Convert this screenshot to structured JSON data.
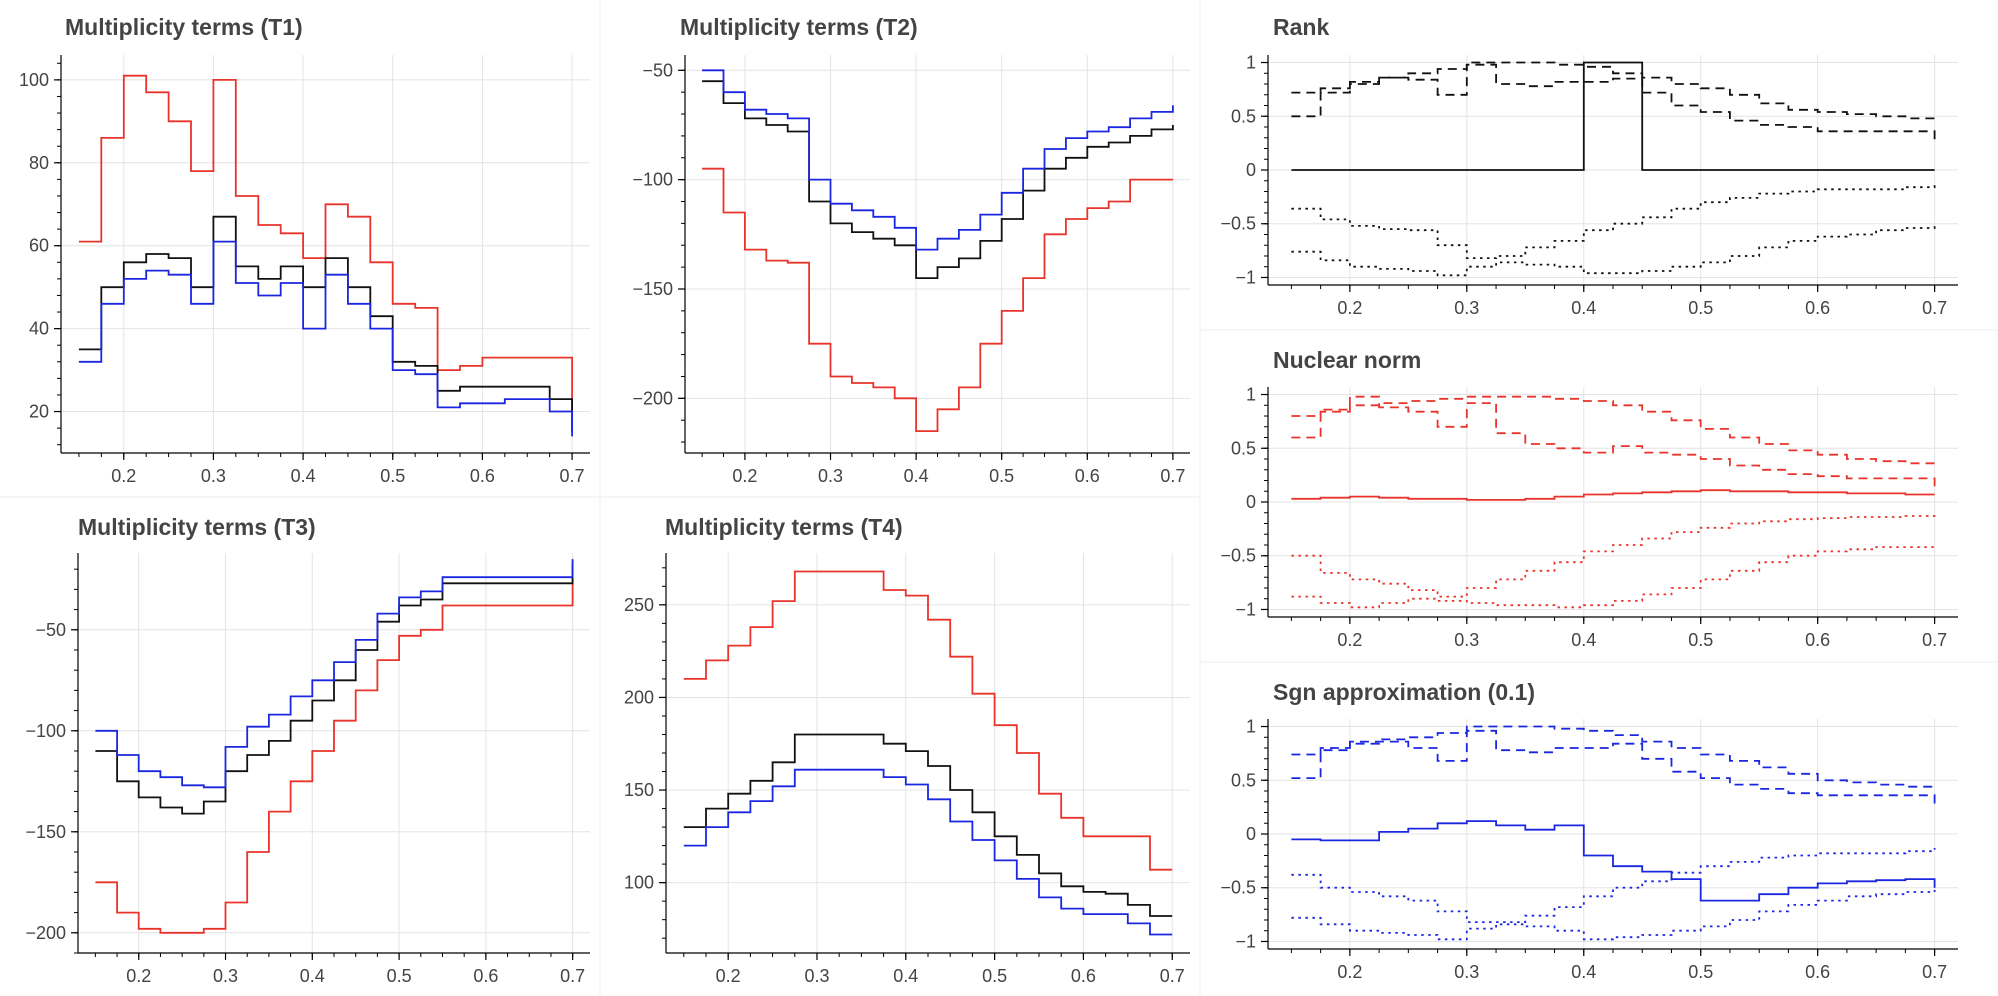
{
  "colors": {
    "red": "#e8342a",
    "black": "#111111",
    "blue": "#1a26e0"
  },
  "chart_data": [
    {
      "type": "line",
      "title": "Multiplicity terms (T1)",
      "xlim": [
        0.13,
        0.72
      ],
      "ylim": [
        10,
        106
      ],
      "xticks": [
        "0.2",
        "0.3",
        "0.4",
        "0.5",
        "0.6",
        "0.7"
      ],
      "yticks": [
        "20",
        "40",
        "60",
        "80",
        "100"
      ],
      "x": [
        0.15,
        0.175,
        0.2,
        0.225,
        0.25,
        0.275,
        0.3,
        0.325,
        0.35,
        0.375,
        0.4,
        0.425,
        0.45,
        0.475,
        0.5,
        0.525,
        0.55,
        0.575,
        0.6,
        0.625,
        0.65,
        0.675,
        0.7
      ],
      "series": [
        {
          "color": "red",
          "dash": "solid",
          "values": [
            61,
            86,
            101,
            97,
            90,
            78,
            100,
            72,
            65,
            63,
            57,
            70,
            67,
            56,
            46,
            45,
            30,
            31,
            33,
            33,
            33,
            33,
            20
          ]
        },
        {
          "color": "black",
          "dash": "solid",
          "values": [
            35,
            50,
            56,
            58,
            57,
            50,
            67,
            55,
            52,
            55,
            50,
            57,
            50,
            43,
            32,
            31,
            25,
            26,
            26,
            26,
            26,
            23,
            15
          ]
        },
        {
          "color": "blue",
          "dash": "solid",
          "values": [
            32,
            46,
            52,
            54,
            53,
            46,
            61,
            51,
            48,
            51,
            40,
            53,
            46,
            40,
            30,
            29,
            21,
            22,
            22,
            23,
            23,
            20,
            14
          ]
        }
      ]
    },
    {
      "type": "line",
      "title": "Multiplicity terms (T2)",
      "xlim": [
        0.13,
        0.72
      ],
      "ylim": [
        -225,
        -43
      ],
      "xticks": [
        "0.2",
        "0.3",
        "0.4",
        "0.5",
        "0.6",
        "0.7"
      ],
      "yticks": [
        "-50",
        "-100",
        "-150",
        "-200"
      ],
      "x": [
        0.15,
        0.175,
        0.2,
        0.225,
        0.25,
        0.275,
        0.3,
        0.325,
        0.35,
        0.375,
        0.4,
        0.425,
        0.45,
        0.475,
        0.5,
        0.525,
        0.55,
        0.575,
        0.6,
        0.625,
        0.65,
        0.675,
        0.7
      ],
      "series": [
        {
          "color": "red",
          "dash": "solid",
          "values": [
            -95,
            -115,
            -132,
            -137,
            -138,
            -175,
            -190,
            -193,
            -195,
            -200,
            -215,
            -205,
            -195,
            -175,
            -160,
            -145,
            -125,
            -118,
            -113,
            -110,
            -100,
            -100,
            -100
          ]
        },
        {
          "color": "black",
          "dash": "solid",
          "values": [
            -55,
            -65,
            -72,
            -75,
            -78,
            -110,
            -120,
            -124,
            -127,
            -130,
            -145,
            -140,
            -136,
            -128,
            -118,
            -105,
            -95,
            -90,
            -85,
            -83,
            -80,
            -77,
            -75
          ]
        },
        {
          "color": "blue",
          "dash": "solid",
          "values": [
            -50,
            -60,
            -68,
            -70,
            -72,
            -100,
            -111,
            -114,
            -117,
            -122,
            -132,
            -127,
            -123,
            -116,
            -106,
            -95,
            -86,
            -81,
            -78,
            -76,
            -72,
            -69,
            -66
          ]
        }
      ]
    },
    {
      "type": "line",
      "title": "Rank",
      "xlim": [
        0.13,
        0.72
      ],
      "ylim": [
        -1.07,
        1.07
      ],
      "xticks": [
        "0.2",
        "0.3",
        "0.4",
        "0.5",
        "0.6",
        "0.7"
      ],
      "yticks": [
        "1",
        "0.5",
        "0",
        "-0.5",
        "-1"
      ],
      "x": [
        0.15,
        0.175,
        0.2,
        0.225,
        0.25,
        0.275,
        0.3,
        0.325,
        0.35,
        0.375,
        0.4,
        0.425,
        0.45,
        0.475,
        0.5,
        0.525,
        0.55,
        0.575,
        0.6,
        0.625,
        0.65,
        0.675,
        0.7
      ],
      "series": [
        {
          "color": "black",
          "dash": "dashed",
          "values": [
            0.72,
            0.76,
            0.8,
            0.86,
            0.9,
            0.94,
            1.0,
            1.0,
            1.0,
            0.98,
            0.96,
            0.9,
            0.86,
            0.8,
            0.76,
            0.7,
            0.62,
            0.56,
            0.54,
            0.52,
            0.5,
            0.48,
            0.45
          ]
        },
        {
          "color": "black",
          "dash": "dashed",
          "values": [
            0.5,
            0.72,
            0.82,
            0.86,
            0.84,
            0.7,
            0.98,
            0.8,
            0.78,
            0.82,
            0.82,
            0.85,
            0.72,
            0.6,
            0.54,
            0.46,
            0.42,
            0.4,
            0.36,
            0.36,
            0.36,
            0.36,
            0.27
          ]
        },
        {
          "color": "black",
          "dash": "solid",
          "values": [
            0,
            0,
            0,
            0,
            0,
            0,
            0,
            0,
            0,
            0,
            1,
            1,
            0,
            0,
            0,
            0,
            0,
            0,
            0,
            0,
            0,
            0,
            0
          ]
        },
        {
          "color": "black",
          "dash": "dotted",
          "values": [
            -0.36,
            -0.46,
            -0.52,
            -0.55,
            -0.56,
            -0.7,
            -0.82,
            -0.8,
            -0.72,
            -0.66,
            -0.56,
            -0.5,
            -0.44,
            -0.36,
            -0.3,
            -0.26,
            -0.22,
            -0.2,
            -0.18,
            -0.18,
            -0.18,
            -0.16,
            -0.13
          ]
        },
        {
          "color": "black",
          "dash": "dotted",
          "values": [
            -0.76,
            -0.84,
            -0.9,
            -0.92,
            -0.94,
            -0.98,
            -0.9,
            -0.86,
            -0.88,
            -0.9,
            -0.96,
            -0.96,
            -0.94,
            -0.9,
            -0.86,
            -0.8,
            -0.72,
            -0.66,
            -0.62,
            -0.6,
            -0.56,
            -0.54,
            -0.52
          ]
        }
      ]
    },
    {
      "type": "line",
      "title": "Nuclear norm",
      "xlim": [
        0.13,
        0.72
      ],
      "ylim": [
        -1.07,
        1.07
      ],
      "xticks": [
        "0.2",
        "0.3",
        "0.4",
        "0.5",
        "0.6",
        "0.7"
      ],
      "yticks": [
        "1",
        "0.5",
        "0",
        "-0.5",
        "-1"
      ],
      "x": [
        0.15,
        0.175,
        0.2,
        0.225,
        0.25,
        0.275,
        0.3,
        0.325,
        0.35,
        0.375,
        0.4,
        0.425,
        0.45,
        0.475,
        0.5,
        0.525,
        0.55,
        0.575,
        0.6,
        0.625,
        0.65,
        0.675,
        0.7
      ],
      "series": [
        {
          "color": "red",
          "dash": "dashed",
          "values": [
            0.8,
            0.84,
            0.9,
            0.92,
            0.94,
            0.96,
            0.98,
            0.98,
            0.98,
            0.96,
            0.94,
            0.9,
            0.84,
            0.76,
            0.68,
            0.6,
            0.54,
            0.48,
            0.44,
            0.4,
            0.38,
            0.36,
            0.34
          ]
        },
        {
          "color": "red",
          "dash": "dashed",
          "values": [
            0.6,
            0.86,
            0.98,
            0.88,
            0.84,
            0.7,
            0.92,
            0.64,
            0.54,
            0.5,
            0.46,
            0.52,
            0.46,
            0.44,
            0.4,
            0.34,
            0.3,
            0.26,
            0.24,
            0.22,
            0.22,
            0.22,
            0.12
          ]
        },
        {
          "color": "red",
          "dash": "solid",
          "values": [
            0.03,
            0.04,
            0.05,
            0.04,
            0.03,
            0.03,
            0.02,
            0.02,
            0.03,
            0.05,
            0.07,
            0.08,
            0.09,
            0.1,
            0.11,
            0.1,
            0.1,
            0.09,
            0.09,
            0.08,
            0.08,
            0.07,
            0.07
          ]
        },
        {
          "color": "red",
          "dash": "dotted",
          "values": [
            -0.5,
            -0.66,
            -0.72,
            -0.76,
            -0.82,
            -0.88,
            -0.8,
            -0.72,
            -0.64,
            -0.56,
            -0.46,
            -0.4,
            -0.34,
            -0.28,
            -0.24,
            -0.2,
            -0.18,
            -0.16,
            -0.15,
            -0.14,
            -0.14,
            -0.13,
            -0.1
          ]
        },
        {
          "color": "red",
          "dash": "dotted",
          "values": [
            -0.88,
            -0.94,
            -0.98,
            -0.94,
            -0.9,
            -0.92,
            -0.94,
            -0.96,
            -0.96,
            -0.98,
            -0.96,
            -0.92,
            -0.86,
            -0.8,
            -0.72,
            -0.64,
            -0.56,
            -0.5,
            -0.46,
            -0.44,
            -0.42,
            -0.42,
            -0.4
          ]
        }
      ]
    },
    {
      "type": "line",
      "title": "Multiplicity terms (T3)",
      "xlim": [
        0.13,
        0.72
      ],
      "ylim": [
        -210,
        -12
      ],
      "xticks": [
        "0.2",
        "0.3",
        "0.4",
        "0.5",
        "0.6",
        "0.7"
      ],
      "yticks": [
        "-50",
        "-100",
        "-150",
        "-200"
      ],
      "x": [
        0.15,
        0.175,
        0.2,
        0.225,
        0.25,
        0.275,
        0.3,
        0.325,
        0.35,
        0.375,
        0.4,
        0.425,
        0.45,
        0.475,
        0.5,
        0.525,
        0.55,
        0.575,
        0.6,
        0.625,
        0.65,
        0.675,
        0.7
      ],
      "series": [
        {
          "color": "red",
          "dash": "solid",
          "values": [
            -175,
            -190,
            -198,
            -200,
            -200,
            -198,
            -185,
            -160,
            -140,
            -125,
            -110,
            -95,
            -80,
            -65,
            -53,
            -50,
            -38,
            -38,
            -38,
            -38,
            -38,
            -38,
            -22
          ]
        },
        {
          "color": "black",
          "dash": "solid",
          "values": [
            -110,
            -125,
            -133,
            -138,
            -141,
            -135,
            -120,
            -112,
            -105,
            -95,
            -85,
            -75,
            -60,
            -46,
            -38,
            -35,
            -27,
            -27,
            -27,
            -27,
            -27,
            -27,
            -17
          ]
        },
        {
          "color": "blue",
          "dash": "solid",
          "values": [
            -100,
            -112,
            -120,
            -123,
            -127,
            -128,
            -108,
            -98,
            -92,
            -83,
            -75,
            -66,
            -55,
            -42,
            -34,
            -31,
            -24,
            -24,
            -24,
            -24,
            -24,
            -24,
            -15
          ]
        }
      ]
    },
    {
      "type": "line",
      "title": "Multiplicity terms (T4)",
      "xlim": [
        0.13,
        0.72
      ],
      "ylim": [
        62,
        278
      ],
      "xticks": [
        "0.2",
        "0.3",
        "0.4",
        "0.5",
        "0.6",
        "0.7"
      ],
      "yticks": [
        "250",
        "200",
        "150",
        "100"
      ],
      "x": [
        0.15,
        0.175,
        0.2,
        0.225,
        0.25,
        0.275,
        0.3,
        0.325,
        0.35,
        0.375,
        0.4,
        0.425,
        0.45,
        0.475,
        0.5,
        0.525,
        0.55,
        0.575,
        0.6,
        0.625,
        0.65,
        0.675,
        0.7
      ],
      "series": [
        {
          "color": "red",
          "dash": "solid",
          "values": [
            210,
            220,
            228,
            238,
            252,
            268,
            268,
            268,
            268,
            258,
            255,
            242,
            222,
            202,
            185,
            170,
            148,
            135,
            125,
            125,
            125,
            107,
            107
          ]
        },
        {
          "color": "black",
          "dash": "solid",
          "values": [
            130,
            140,
            148,
            155,
            165,
            180,
            180,
            180,
            180,
            175,
            171,
            163,
            150,
            138,
            125,
            115,
            105,
            98,
            95,
            94,
            88,
            82,
            82
          ]
        },
        {
          "color": "blue",
          "dash": "solid",
          "values": [
            120,
            130,
            138,
            144,
            152,
            161,
            161,
            161,
            161,
            157,
            153,
            145,
            133,
            123,
            112,
            102,
            92,
            86,
            83,
            83,
            78,
            72,
            72
          ]
        }
      ]
    },
    {
      "type": "line",
      "title": "Sgn approximation (0.1)",
      "xlim": [
        0.13,
        0.72
      ],
      "ylim": [
        -1.07,
        1.07
      ],
      "xticks": [
        "0.2",
        "0.3",
        "0.4",
        "0.5",
        "0.6",
        "0.7"
      ],
      "yticks": [
        "1",
        "0.5",
        "0",
        "-0.5",
        "-1"
      ],
      "x": [
        0.15,
        0.175,
        0.2,
        0.225,
        0.25,
        0.275,
        0.3,
        0.325,
        0.35,
        0.375,
        0.4,
        0.425,
        0.45,
        0.475,
        0.5,
        0.525,
        0.55,
        0.575,
        0.6,
        0.625,
        0.65,
        0.675,
        0.7
      ],
      "series": [
        {
          "color": "blue",
          "dash": "dashed",
          "values": [
            0.74,
            0.8,
            0.84,
            0.88,
            0.9,
            0.94,
            1.0,
            1.0,
            1.0,
            0.98,
            0.96,
            0.92,
            0.86,
            0.8,
            0.74,
            0.68,
            0.62,
            0.56,
            0.5,
            0.48,
            0.46,
            0.44,
            0.42
          ]
        },
        {
          "color": "blue",
          "dash": "dashed",
          "values": [
            0.52,
            0.78,
            0.86,
            0.86,
            0.8,
            0.68,
            0.96,
            0.78,
            0.76,
            0.8,
            0.8,
            0.84,
            0.7,
            0.58,
            0.52,
            0.46,
            0.42,
            0.38,
            0.36,
            0.36,
            0.36,
            0.36,
            0.26
          ]
        },
        {
          "color": "blue",
          "dash": "solid",
          "values": [
            -0.05,
            -0.06,
            -0.06,
            0.02,
            0.05,
            0.1,
            0.12,
            0.08,
            0.04,
            0.08,
            -0.2,
            -0.3,
            -0.35,
            -0.42,
            -0.62,
            -0.62,
            -0.56,
            -0.5,
            -0.46,
            -0.44,
            -0.43,
            -0.42,
            -0.5
          ]
        },
        {
          "color": "blue",
          "dash": "dotted",
          "values": [
            -0.38,
            -0.5,
            -0.54,
            -0.58,
            -0.62,
            -0.72,
            -0.82,
            -0.82,
            -0.76,
            -0.68,
            -0.58,
            -0.5,
            -0.44,
            -0.36,
            -0.3,
            -0.26,
            -0.22,
            -0.2,
            -0.18,
            -0.18,
            -0.18,
            -0.16,
            -0.13
          ]
        },
        {
          "color": "blue",
          "dash": "dotted",
          "values": [
            -0.78,
            -0.84,
            -0.9,
            -0.92,
            -0.94,
            -0.98,
            -0.88,
            -0.84,
            -0.86,
            -0.9,
            -0.98,
            -0.96,
            -0.94,
            -0.9,
            -0.86,
            -0.8,
            -0.72,
            -0.66,
            -0.62,
            -0.58,
            -0.56,
            -0.54,
            -0.52
          ]
        }
      ]
    }
  ]
}
